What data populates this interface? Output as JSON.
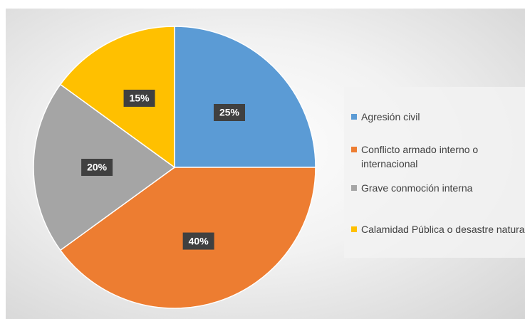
{
  "chart_data": {
    "type": "pie",
    "categories": [
      "Agresión civil",
      "Conflicto armado interno o internacional",
      "Grave conmoción interna",
      "Calamidad Pública o desastre natural"
    ],
    "values": [
      25,
      40,
      20,
      15
    ],
    "value_labels": [
      "25%",
      "40%",
      "20%",
      "15%"
    ],
    "colors": [
      "#5b9bd5",
      "#ed7d31",
      "#a5a5a5",
      "#ffc000"
    ],
    "legend": "right"
  }
}
